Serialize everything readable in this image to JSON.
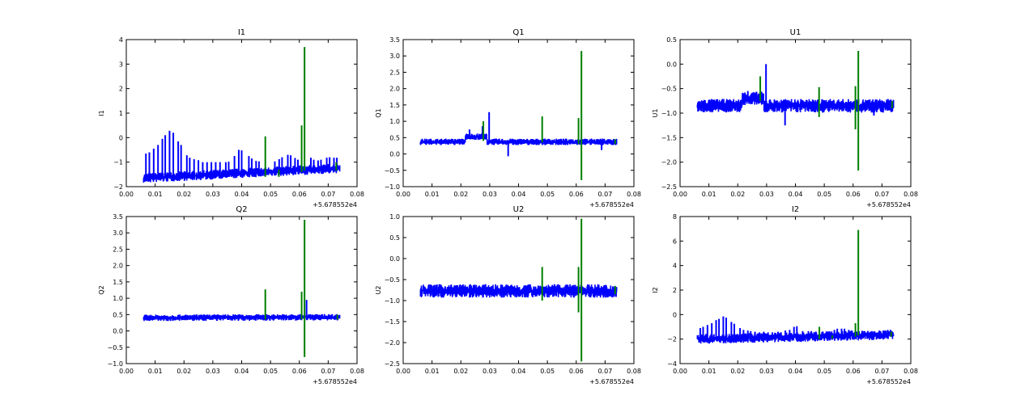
{
  "figure": {
    "background": "#ffffff"
  },
  "colors": {
    "series_main": "#0000ff",
    "series_event": "#008000",
    "axes": "#000000"
  },
  "chart_data": [
    {
      "type": "line",
      "title": "I1",
      "xlabel": "",
      "ylabel": "I1",
      "xlim": [
        0.0,
        0.08
      ],
      "ylim": [
        -2,
        4
      ],
      "xticks": [
        "0.00",
        "0.01",
        "0.02",
        "0.03",
        "0.04",
        "0.05",
        "0.06",
        "0.07",
        "0.08"
      ],
      "yticks": [
        -2,
        -1,
        0,
        1,
        2,
        3,
        4
      ],
      "ytick_labels": [
        "−2",
        "−1",
        "0",
        "1",
        "2",
        "3",
        "4"
      ],
      "x_offset": "+5.678552e4",
      "baseline": {
        "x_start": 0.006,
        "x_end": 0.074,
        "y_start": -1.65,
        "y_end": -1.25,
        "noise": 0.1,
        "bump": null
      },
      "spikes_main": [
        [
          0.0068,
          -0.65
        ],
        [
          0.008,
          -0.6
        ],
        [
          0.0095,
          -0.45
        ],
        [
          0.011,
          -0.3
        ],
        [
          0.0125,
          -0.05
        ],
        [
          0.0135,
          0.1
        ],
        [
          0.015,
          0.28
        ],
        [
          0.0163,
          0.2
        ],
        [
          0.018,
          -0.15
        ],
        [
          0.019,
          -0.3
        ],
        [
          0.021,
          -0.72
        ],
        [
          0.022,
          -0.82
        ],
        [
          0.0235,
          -0.88
        ],
        [
          0.025,
          -0.92
        ],
        [
          0.0265,
          -1.0
        ],
        [
          0.028,
          -1.0
        ],
        [
          0.0295,
          -1.0
        ],
        [
          0.031,
          -1.0
        ],
        [
          0.0325,
          -1.0
        ],
        [
          0.0345,
          -1.0
        ],
        [
          0.0355,
          -0.98
        ],
        [
          0.0375,
          -0.75
        ],
        [
          0.039,
          -0.5
        ],
        [
          0.04,
          -0.52
        ],
        [
          0.0425,
          -0.75
        ],
        [
          0.0435,
          -0.85
        ],
        [
          0.045,
          -0.95
        ],
        [
          0.046,
          -0.97
        ],
        [
          0.0515,
          -0.97
        ],
        [
          0.053,
          -0.88
        ],
        [
          0.054,
          -0.8
        ],
        [
          0.056,
          -0.7
        ],
        [
          0.057,
          -0.72
        ],
        [
          0.0585,
          -0.83
        ],
        [
          0.0595,
          -0.9
        ],
        [
          0.064,
          -0.82
        ],
        [
          0.065,
          -0.9
        ],
        [
          0.0665,
          -0.93
        ],
        [
          0.0675,
          -0.9
        ],
        [
          0.0695,
          -0.82
        ],
        [
          0.0705,
          -0.8
        ],
        [
          0.072,
          -0.82
        ],
        [
          0.073,
          -0.82
        ]
      ],
      "spikes_event": [
        [
          0.0482,
          0.05,
          -1.6
        ],
        [
          0.0529,
          -1.3,
          -1.6
        ],
        [
          0.0608,
          0.5,
          -1.4
        ],
        [
          0.0618,
          3.7,
          -1.35
        ],
        [
          0.0728,
          -1.0,
          -1.35
        ]
      ]
    },
    {
      "type": "line",
      "title": "Q1",
      "xlabel": "",
      "ylabel": "Q1",
      "xlim": [
        0.0,
        0.08
      ],
      "ylim": [
        -1.0,
        3.5
      ],
      "xticks": [
        "0.00",
        "0.01",
        "0.02",
        "0.03",
        "0.04",
        "0.05",
        "0.06",
        "0.07",
        "0.08"
      ],
      "yticks": [
        -1,
        -0.5,
        0,
        0.5,
        1,
        1.5,
        2,
        2.5,
        3,
        3.5
      ],
      "ytick_labels": [
        "−1.0",
        "−0.5",
        "0.0",
        "0.5",
        "1.0",
        "1.5",
        "2.0",
        "2.5",
        "3.0",
        "3.5"
      ],
      "x_offset": "+5.678552e4",
      "baseline": {
        "x_start": 0.006,
        "x_end": 0.074,
        "y_start": 0.37,
        "y_end": 0.37,
        "noise": 0.05,
        "bump": {
          "x_start": 0.0215,
          "x_end": 0.029,
          "y": 0.53
        }
      },
      "spikes_main": [
        [
          0.023,
          0.75
        ],
        [
          0.0275,
          0.85
        ],
        [
          0.0298,
          1.28
        ],
        [
          0.0364,
          -0.07
        ],
        [
          0.0688,
          0.12
        ]
      ],
      "spikes_event": [
        [
          0.0278,
          1.0,
          0.4
        ],
        [
          0.0482,
          1.15,
          0.35
        ],
        [
          0.0608,
          1.1,
          0.3
        ],
        [
          0.0618,
          3.15,
          -0.8
        ],
        [
          0.0735,
          0.45,
          0.3
        ]
      ]
    },
    {
      "type": "line",
      "title": "U1",
      "xlabel": "",
      "ylabel": "U1",
      "xlim": [
        0.0,
        0.08
      ],
      "ylim": [
        -2.5,
        0.5
      ],
      "xticks": [
        "0.00",
        "0.01",
        "0.02",
        "0.03",
        "0.04",
        "0.05",
        "0.06",
        "0.07",
        "0.08"
      ],
      "yticks": [
        -2.5,
        -2,
        -1.5,
        -1,
        -0.5,
        0,
        0.5
      ],
      "ytick_labels": [
        "−2.5",
        "−2.0",
        "−1.5",
        "−1.0",
        "−0.5",
        "0.0",
        "0.5"
      ],
      "x_offset": "+5.678552e4",
      "baseline": {
        "x_start": 0.006,
        "x_end": 0.074,
        "y_start": -0.85,
        "y_end": -0.85,
        "noise": 0.07,
        "bump": {
          "x_start": 0.0215,
          "x_end": 0.029,
          "y": -0.7
        }
      },
      "spikes_main": [
        [
          0.0235,
          -0.55
        ],
        [
          0.0298,
          0.0
        ],
        [
          0.0364,
          -1.25
        ],
        [
          0.0672,
          -1.05
        ]
      ],
      "spikes_event": [
        [
          0.0278,
          -0.25,
          -0.75
        ],
        [
          0.0482,
          -0.47,
          -1.08
        ],
        [
          0.0608,
          -0.45,
          -1.33
        ],
        [
          0.0618,
          0.27,
          -2.17
        ],
        [
          0.0735,
          -0.75,
          -0.9
        ]
      ]
    },
    {
      "type": "line",
      "title": "Q2",
      "xlabel": "",
      "ylabel": "Q2",
      "xlim": [
        0.0,
        0.08
      ],
      "ylim": [
        -1.0,
        3.5
      ],
      "xticks": [
        "0.00",
        "0.01",
        "0.02",
        "0.03",
        "0.04",
        "0.05",
        "0.06",
        "0.07",
        "0.08"
      ],
      "yticks": [
        -1,
        -0.5,
        0,
        0.5,
        1,
        1.5,
        2,
        2.5,
        3,
        3.5
      ],
      "ytick_labels": [
        "−1.0",
        "−0.5",
        "0.0",
        "0.5",
        "1.0",
        "1.5",
        "2.0",
        "2.5",
        "3.0",
        "3.5"
      ],
      "x_offset": "+5.678552e4",
      "baseline": {
        "x_start": 0.006,
        "x_end": 0.074,
        "y_start": 0.4,
        "y_end": 0.42,
        "noise": 0.05,
        "bump": null
      },
      "spikes_main": [
        [
          0.0625,
          0.95
        ]
      ],
      "spikes_event": [
        [
          0.0482,
          1.27,
          0.35
        ],
        [
          0.0608,
          1.2,
          0.35
        ],
        [
          0.0618,
          3.4,
          -0.8
        ],
        [
          0.0732,
          0.5,
          0.35
        ]
      ]
    },
    {
      "type": "line",
      "title": "U2",
      "xlabel": "",
      "ylabel": "U2",
      "xlim": [
        0.0,
        0.08
      ],
      "ylim": [
        -2.5,
        1.0
      ],
      "xticks": [
        "0.00",
        "0.01",
        "0.02",
        "0.03",
        "0.04",
        "0.05",
        "0.06",
        "0.07",
        "0.08"
      ],
      "yticks": [
        -2.5,
        -2,
        -1.5,
        -1,
        -0.5,
        0,
        0.5,
        1
      ],
      "ytick_labels": [
        "−2.5",
        "−2.0",
        "−1.5",
        "−1.0",
        "−0.5",
        "0.0",
        "0.5",
        "1.0"
      ],
      "x_offset": "+5.678552e4",
      "baseline": {
        "x_start": 0.006,
        "x_end": 0.074,
        "y_start": -0.77,
        "y_end": -0.77,
        "noise": 0.08,
        "bump": null
      },
      "spikes_main": [],
      "spikes_event": [
        [
          0.0482,
          -0.2,
          -1.0
        ],
        [
          0.0608,
          -0.2,
          -1.28
        ],
        [
          0.0618,
          0.95,
          -2.45
        ],
        [
          0.0735,
          -0.65,
          -0.85
        ]
      ]
    },
    {
      "type": "line",
      "title": "I2",
      "xlabel": "",
      "ylabel": "I2",
      "xlim": [
        0.0,
        0.08
      ],
      "ylim": [
        -4,
        8
      ],
      "xticks": [
        "0.00",
        "0.01",
        "0.02",
        "0.03",
        "0.04",
        "0.05",
        "0.06",
        "0.07",
        "0.08"
      ],
      "yticks": [
        -4,
        -2,
        0,
        2,
        4,
        6,
        8
      ],
      "ytick_labels": [
        "−4",
        "−2",
        "0",
        "2",
        "4",
        "6",
        "8"
      ],
      "x_offset": "+5.678552e4",
      "baseline": {
        "x_start": 0.006,
        "x_end": 0.074,
        "y_start": -2.0,
        "y_end": -1.65,
        "noise": 0.2,
        "bump": null
      },
      "spikes_main": [
        [
          0.007,
          -1.1
        ],
        [
          0.008,
          -1.0
        ],
        [
          0.0095,
          -0.85
        ],
        [
          0.011,
          -0.7
        ],
        [
          0.0125,
          -0.45
        ],
        [
          0.0135,
          -0.35
        ],
        [
          0.015,
          -0.15
        ],
        [
          0.016,
          -0.25
        ],
        [
          0.0178,
          -0.6
        ],
        [
          0.0188,
          -0.75
        ],
        [
          0.0208,
          -1.1
        ],
        [
          0.022,
          -1.25
        ],
        [
          0.0235,
          -1.3
        ],
        [
          0.0245,
          -1.35
        ],
        [
          0.026,
          -1.4
        ],
        [
          0.0275,
          -1.45
        ],
        [
          0.029,
          -1.4
        ],
        [
          0.0305,
          -1.45
        ],
        [
          0.032,
          -1.45
        ],
        [
          0.034,
          -1.4
        ],
        [
          0.035,
          -1.45
        ],
        [
          0.0365,
          -1.3
        ],
        [
          0.038,
          -1.25
        ],
        [
          0.0395,
          -1.0
        ],
        [
          0.0405,
          -0.95
        ],
        [
          0.0425,
          -1.35
        ],
        [
          0.0445,
          -1.35
        ],
        [
          0.0455,
          -1.35
        ],
        [
          0.0495,
          -1.4
        ],
        [
          0.051,
          -1.45
        ],
        [
          0.0525,
          -1.45
        ],
        [
          0.0535,
          -1.25
        ],
        [
          0.0545,
          -1.15
        ],
        [
          0.056,
          -1.15
        ],
        [
          0.057,
          -1.15
        ],
        [
          0.0585,
          -1.25
        ],
        [
          0.0595,
          -1.3
        ],
        [
          0.064,
          -1.35
        ],
        [
          0.065,
          -1.4
        ],
        [
          0.0665,
          -1.35
        ],
        [
          0.0675,
          -1.4
        ],
        [
          0.0695,
          -1.35
        ],
        [
          0.0705,
          -1.3
        ],
        [
          0.072,
          -1.25
        ],
        [
          0.073,
          -1.25
        ]
      ],
      "spikes_event": [
        [
          0.0483,
          -1.0,
          -2.0
        ],
        [
          0.0528,
          -1.7,
          -1.95
        ],
        [
          0.0608,
          -0.7,
          -1.8
        ],
        [
          0.0618,
          6.9,
          -1.7
        ],
        [
          0.0732,
          -1.4,
          -1.8
        ]
      ]
    }
  ]
}
